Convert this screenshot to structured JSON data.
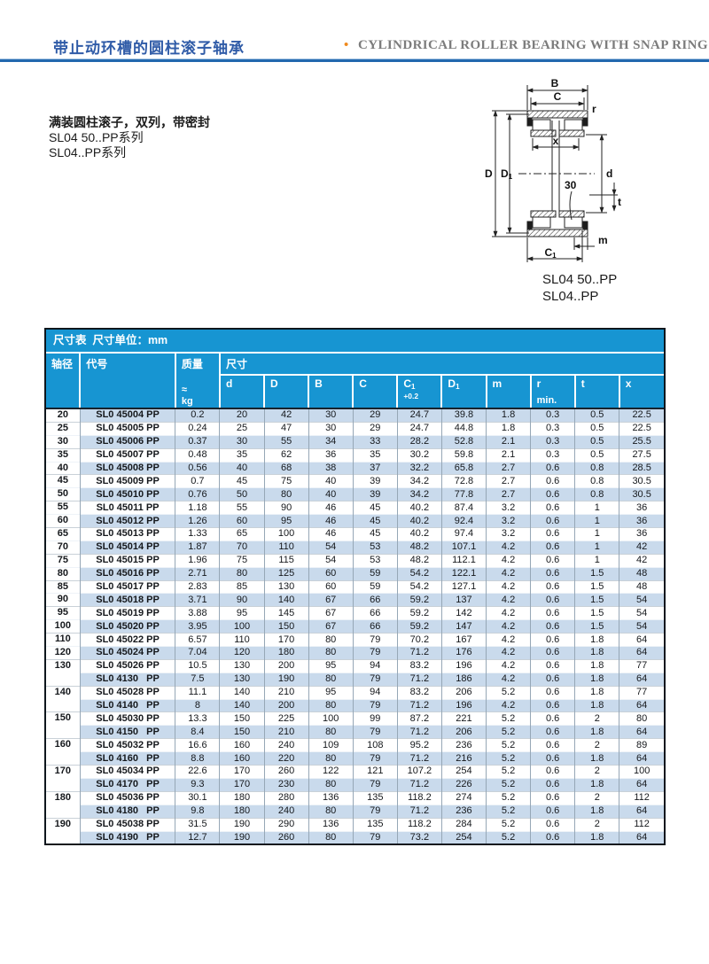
{
  "page_header": {
    "title_zh": "带止动环槽的圆柱滚子轴承",
    "bullet": "•",
    "title_en": "CYLINDRICAL ROLLER BEARING WITH SNAP RING GROOVE"
  },
  "description": {
    "line1": "满装圆柱滚子，双列，带密封",
    "line2": "SL04 50..PP系列",
    "line3": "SL04..PP系列"
  },
  "drawing": {
    "labels": {
      "B": "B",
      "C": "C",
      "r": "r",
      "x": "x",
      "D": "D",
      "D1_main": "D",
      "D1_sub": "1",
      "d": "d",
      "angle": "30",
      "t": "t",
      "m": "m",
      "C1_main": "C",
      "C1_sub": "1"
    },
    "caption_line1": "SL04 50..PP",
    "caption_line2": "SL04..PP"
  },
  "colors": {
    "header_blue": "#1795d2",
    "row_shade": "#c9daec",
    "rule_blue": "#2268ae",
    "title_blue": "#2f5ba7",
    "accent_orange": "#ef8a1e"
  },
  "table": {
    "title": "尺寸表  尺寸单位：mm",
    "headers": {
      "shaft": "轴径",
      "code": "代号",
      "mass": "质量",
      "mass_approx": "≈",
      "mass_unit": "kg",
      "dims": "尺寸",
      "cols": [
        {
          "label": "d",
          "sub": "",
          "note": "",
          "foot": ""
        },
        {
          "label": "D",
          "sub": "",
          "note": "",
          "foot": ""
        },
        {
          "label": "B",
          "sub": "",
          "note": "",
          "foot": ""
        },
        {
          "label": "C",
          "sub": "",
          "note": "",
          "foot": ""
        },
        {
          "label": "C",
          "sub": "1",
          "note": "+0.2",
          "foot": ""
        },
        {
          "label": "D",
          "sub": "1",
          "note": "",
          "foot": ""
        },
        {
          "label": "m",
          "sub": "",
          "note": "",
          "foot": ""
        },
        {
          "label": "r",
          "sub": "",
          "note": "",
          "foot": "min."
        },
        {
          "label": "t",
          "sub": "",
          "note": "",
          "foot": ""
        },
        {
          "label": "x",
          "sub": "",
          "note": "",
          "foot": ""
        }
      ]
    },
    "rows": [
      {
        "shaft": "20",
        "span": 1,
        "code": "SL0 45004 PP",
        "mass": "0.2",
        "vals": [
          "20",
          "42",
          "30",
          "29",
          "24.7",
          "39.8",
          "1.8",
          "0.3",
          "0.5",
          "22.5"
        ]
      },
      {
        "shaft": "25",
        "span": 1,
        "code": "SL0 45005 PP",
        "mass": "0.24",
        "vals": [
          "25",
          "47",
          "30",
          "29",
          "24.7",
          "44.8",
          "1.8",
          "0.3",
          "0.5",
          "22.5"
        ]
      },
      {
        "shaft": "30",
        "span": 1,
        "code": "SL0 45006 PP",
        "mass": "0.37",
        "vals": [
          "30",
          "55",
          "34",
          "33",
          "28.2",
          "52.8",
          "2.1",
          "0.3",
          "0.5",
          "25.5"
        ]
      },
      {
        "shaft": "35",
        "span": 1,
        "code": "SL0 45007 PP",
        "mass": "0.48",
        "vals": [
          "35",
          "62",
          "36",
          "35",
          "30.2",
          "59.8",
          "2.1",
          "0.3",
          "0.5",
          "27.5"
        ]
      },
      {
        "shaft": "40",
        "span": 1,
        "code": "SL0 45008 PP",
        "mass": "0.56",
        "vals": [
          "40",
          "68",
          "38",
          "37",
          "32.2",
          "65.8",
          "2.7",
          "0.6",
          "0.8",
          "28.5"
        ]
      },
      {
        "shaft": "45",
        "span": 1,
        "code": "SL0 45009 PP",
        "mass": "0.7",
        "vals": [
          "45",
          "75",
          "40",
          "39",
          "34.2",
          "72.8",
          "2.7",
          "0.6",
          "0.8",
          "30.5"
        ]
      },
      {
        "shaft": "50",
        "span": 1,
        "code": "SL0 45010 PP",
        "mass": "0.76",
        "vals": [
          "50",
          "80",
          "40",
          "39",
          "34.2",
          "77.8",
          "2.7",
          "0.6",
          "0.8",
          "30.5"
        ]
      },
      {
        "shaft": "55",
        "span": 1,
        "code": "SL0 45011 PP",
        "mass": "1.18",
        "vals": [
          "55",
          "90",
          "46",
          "45",
          "40.2",
          "87.4",
          "3.2",
          "0.6",
          "1",
          "36"
        ]
      },
      {
        "shaft": "60",
        "span": 1,
        "code": "SL0 45012 PP",
        "mass": "1.26",
        "vals": [
          "60",
          "95",
          "46",
          "45",
          "40.2",
          "92.4",
          "3.2",
          "0.6",
          "1",
          "36"
        ]
      },
      {
        "shaft": "65",
        "span": 1,
        "code": "SL0 45013 PP",
        "mass": "1.33",
        "vals": [
          "65",
          "100",
          "46",
          "45",
          "40.2",
          "97.4",
          "3.2",
          "0.6",
          "1",
          "36"
        ]
      },
      {
        "shaft": "70",
        "span": 1,
        "code": "SL0 45014 PP",
        "mass": "1.87",
        "vals": [
          "70",
          "110",
          "54",
          "53",
          "48.2",
          "107.1",
          "4.2",
          "0.6",
          "1",
          "42"
        ]
      },
      {
        "shaft": "75",
        "span": 1,
        "code": "SL0 45015 PP",
        "mass": "1.96",
        "vals": [
          "75",
          "115",
          "54",
          "53",
          "48.2",
          "112.1",
          "4.2",
          "0.6",
          "1",
          "42"
        ]
      },
      {
        "shaft": "80",
        "span": 1,
        "code": "SL0 45016 PP",
        "mass": "2.71",
        "vals": [
          "80",
          "125",
          "60",
          "59",
          "54.2",
          "122.1",
          "4.2",
          "0.6",
          "1.5",
          "48"
        ]
      },
      {
        "shaft": "85",
        "span": 1,
        "code": "SL0 45017 PP",
        "mass": "2.83",
        "vals": [
          "85",
          "130",
          "60",
          "59",
          "54.2",
          "127.1",
          "4.2",
          "0.6",
          "1.5",
          "48"
        ]
      },
      {
        "shaft": "90",
        "span": 1,
        "code": "SL0 45018 PP",
        "mass": "3.71",
        "vals": [
          "90",
          "140",
          "67",
          "66",
          "59.2",
          "137",
          "4.2",
          "0.6",
          "1.5",
          "54"
        ]
      },
      {
        "shaft": "95",
        "span": 1,
        "code": "SL0 45019 PP",
        "mass": "3.88",
        "vals": [
          "95",
          "145",
          "67",
          "66",
          "59.2",
          "142",
          "4.2",
          "0.6",
          "1.5",
          "54"
        ]
      },
      {
        "shaft": "100",
        "span": 1,
        "code": "SL0 45020 PP",
        "mass": "3.95",
        "vals": [
          "100",
          "150",
          "67",
          "66",
          "59.2",
          "147",
          "4.2",
          "0.6",
          "1.5",
          "54"
        ]
      },
      {
        "shaft": "110",
        "span": 1,
        "code": "SL0 45022 PP",
        "mass": "6.57",
        "vals": [
          "110",
          "170",
          "80",
          "79",
          "70.2",
          "167",
          "4.2",
          "0.6",
          "1.8",
          "64"
        ]
      },
      {
        "shaft": "120",
        "span": 1,
        "code": "SL0 45024 PP",
        "mass": "7.04",
        "vals": [
          "120",
          "180",
          "80",
          "79",
          "71.2",
          "176",
          "4.2",
          "0.6",
          "1.8",
          "64"
        ]
      },
      {
        "shaft": "130",
        "span": 2,
        "code": "SL0 45026 PP",
        "mass": "10.5",
        "vals": [
          "130",
          "200",
          "95",
          "94",
          "83.2",
          "196",
          "4.2",
          "0.6",
          "1.8",
          "77"
        ]
      },
      {
        "shaft": null,
        "span": 0,
        "code": "SL0 4130   PP",
        "mass": "7.5",
        "vals": [
          "130",
          "190",
          "80",
          "79",
          "71.2",
          "186",
          "4.2",
          "0.6",
          "1.8",
          "64"
        ]
      },
      {
        "shaft": "140",
        "span": 2,
        "code": "SL0 45028 PP",
        "mass": "11.1",
        "vals": [
          "140",
          "210",
          "95",
          "94",
          "83.2",
          "206",
          "5.2",
          "0.6",
          "1.8",
          "77"
        ]
      },
      {
        "shaft": null,
        "span": 0,
        "code": "SL0 4140   PP",
        "mass": "8",
        "vals": [
          "140",
          "200",
          "80",
          "79",
          "71.2",
          "196",
          "4.2",
          "0.6",
          "1.8",
          "64"
        ]
      },
      {
        "shaft": "150",
        "span": 2,
        "code": "SL0 45030 PP",
        "mass": "13.3",
        "vals": [
          "150",
          "225",
          "100",
          "99",
          "87.2",
          "221",
          "5.2",
          "0.6",
          "2",
          "80"
        ]
      },
      {
        "shaft": null,
        "span": 0,
        "code": "SL0 4150   PP",
        "mass": "8.4",
        "vals": [
          "150",
          "210",
          "80",
          "79",
          "71.2",
          "206",
          "5.2",
          "0.6",
          "1.8",
          "64"
        ]
      },
      {
        "shaft": "160",
        "span": 2,
        "code": "SL0 45032 PP",
        "mass": "16.6",
        "vals": [
          "160",
          "240",
          "109",
          "108",
          "95.2",
          "236",
          "5.2",
          "0.6",
          "2",
          "89"
        ]
      },
      {
        "shaft": null,
        "span": 0,
        "code": "SL0 4160   PP",
        "mass": "8.8",
        "vals": [
          "160",
          "220",
          "80",
          "79",
          "71.2",
          "216",
          "5.2",
          "0.6",
          "1.8",
          "64"
        ]
      },
      {
        "shaft": "170",
        "span": 2,
        "code": "SL0 45034 PP",
        "mass": "22.6",
        "vals": [
          "170",
          "260",
          "122",
          "121",
          "107.2",
          "254",
          "5.2",
          "0.6",
          "2",
          "100"
        ]
      },
      {
        "shaft": null,
        "span": 0,
        "code": "SL0 4170   PP",
        "mass": "9.3",
        "vals": [
          "170",
          "230",
          "80",
          "79",
          "71.2",
          "226",
          "5.2",
          "0.6",
          "1.8",
          "64"
        ]
      },
      {
        "shaft": "180",
        "span": 2,
        "code": "SL0 45036 PP",
        "mass": "30.1",
        "vals": [
          "180",
          "280",
          "136",
          "135",
          "118.2",
          "274",
          "5.2",
          "0.6",
          "2",
          "112"
        ]
      },
      {
        "shaft": null,
        "span": 0,
        "code": "SL0 4180   PP",
        "mass": "9.8",
        "vals": [
          "180",
          "240",
          "80",
          "79",
          "71.2",
          "236",
          "5.2",
          "0.6",
          "1.8",
          "64"
        ]
      },
      {
        "shaft": "190",
        "span": 2,
        "code": "SL0 45038 PP",
        "mass": "31.5",
        "vals": [
          "190",
          "290",
          "136",
          "135",
          "118.2",
          "284",
          "5.2",
          "0.6",
          "2",
          "112"
        ]
      },
      {
        "shaft": null,
        "span": 0,
        "code": "SL0 4190   PP",
        "mass": "12.7",
        "vals": [
          "190",
          "260",
          "80",
          "79",
          "73.2",
          "254",
          "5.2",
          "0.6",
          "1.8",
          "64"
        ]
      }
    ]
  }
}
